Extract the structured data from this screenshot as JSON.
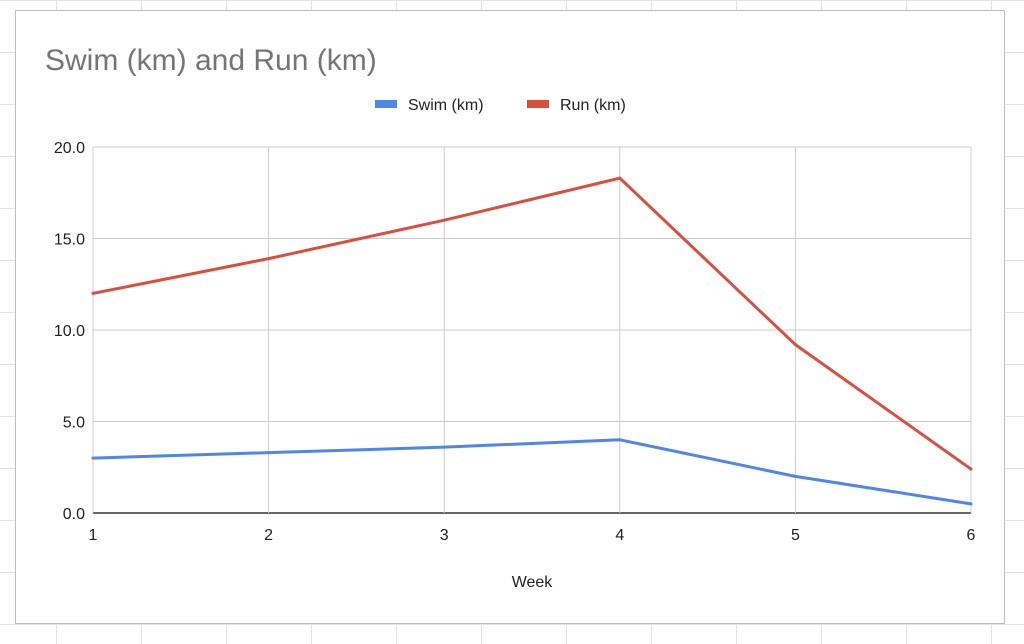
{
  "chart_data": {
    "type": "line",
    "title": "Swim (km) and Run (km)",
    "xlabel": "Week",
    "ylabel": "",
    "x": [
      1,
      2,
      3,
      4,
      5,
      6
    ],
    "xticks": [
      "1",
      "2",
      "3",
      "4",
      "5",
      "6"
    ],
    "yticks": [
      "0.0",
      "5.0",
      "10.0",
      "15.0",
      "20.0"
    ],
    "ylim": [
      0,
      20
    ],
    "xlim": [
      1,
      6
    ],
    "grid": true,
    "legend_position": "top",
    "series": [
      {
        "name": "Swim (km)",
        "color": "#4f86ec",
        "values": [
          3.0,
          3.3,
          3.6,
          4.0,
          2.0,
          0.5
        ]
      },
      {
        "name": "Run (km)",
        "color": "#d9503f",
        "values": [
          12.0,
          13.9,
          16.0,
          18.3,
          9.2,
          2.4
        ]
      }
    ]
  }
}
